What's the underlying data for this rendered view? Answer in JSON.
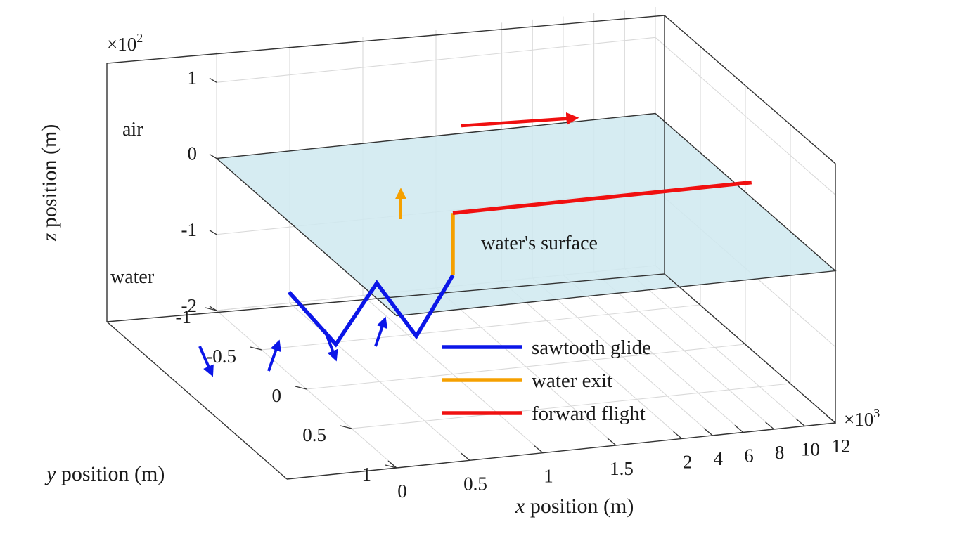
{
  "chart_data": {
    "type": "line",
    "dimensions": "3d",
    "x_axis": {
      "label_var": "x",
      "label_rest": " position (m)",
      "segments": [
        {
          "ticks": [
            0,
            0.5,
            1,
            1.5
          ],
          "tick_labels": [
            "0",
            "0.5",
            "1",
            "1.5"
          ]
        },
        {
          "ticks": [
            2,
            4,
            6,
            8,
            10,
            12
          ],
          "tick_labels": [
            "2",
            "4",
            "6",
            "8",
            "10",
            "12"
          ],
          "multiplier_base": "×10",
          "multiplier_exp": "3"
        }
      ]
    },
    "y_axis": {
      "label_var": "y",
      "label_rest": " position (m)",
      "range": [
        -1,
        1
      ],
      "ticks": [
        -1,
        -0.5,
        0,
        0.5,
        1
      ],
      "tick_labels": [
        "-1",
        "-0.5",
        "0",
        "0.5",
        "1"
      ]
    },
    "z_axis": {
      "label_var": "z",
      "label_rest": " position (m)",
      "range": [
        -2,
        1.4
      ],
      "ticks": [
        -2,
        -1,
        0,
        1
      ],
      "tick_labels": [
        "-2",
        "-1",
        "0",
        "1"
      ],
      "multiplier_base": "×10",
      "multiplier_exp": "2"
    },
    "grid": true,
    "surface": {
      "z": 0,
      "color": "#cfe9f0",
      "label": "water's surface"
    },
    "region_labels": {
      "air": "air",
      "water": "water"
    },
    "series": [
      {
        "name": "sawtooth glide",
        "color": "#0b16e8",
        "points": [
          [
            -0.12,
            0,
            -0.7
          ],
          [
            0.2,
            0,
            -1.45
          ],
          [
            0.48,
            0,
            -0.7
          ],
          [
            0.75,
            0,
            -1.45
          ],
          [
            1.0,
            0,
            -0.7
          ]
        ]
      },
      {
        "name": "water exit",
        "color": "#f5a000",
        "points": [
          [
            1.0,
            0,
            -0.7
          ],
          [
            1.0,
            0,
            0.12
          ]
        ]
      },
      {
        "name": "forward flight",
        "color": "#f01010",
        "points": [
          [
            1.0,
            0,
            0.12
          ],
          [
            12.4,
            0,
            0.12
          ]
        ]
      }
    ],
    "legend": {
      "placement": "lower-right"
    }
  }
}
